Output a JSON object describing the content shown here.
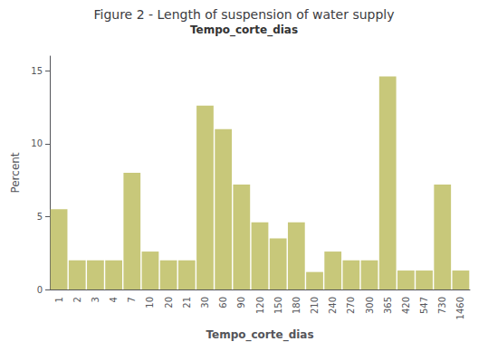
{
  "chart_data": {
    "type": "bar",
    "title": "Figure 2 - Length of suspension of water supply",
    "subtitle": "Tempo_corte_dias",
    "xlabel": "Tempo_corte_dias",
    "ylabel": "Percent",
    "categories": [
      "1",
      "2",
      "3",
      "4",
      "7",
      "10",
      "20",
      "21",
      "30",
      "60",
      "90",
      "120",
      "150",
      "180",
      "210",
      "240",
      "270",
      "300",
      "365",
      "420",
      "547",
      "730",
      "1460"
    ],
    "values": [
      5.5,
      2.0,
      2.0,
      2.0,
      8.0,
      2.6,
      2.0,
      2.0,
      12.6,
      11.0,
      7.2,
      4.6,
      3.5,
      4.6,
      1.2,
      2.6,
      2.0,
      2.0,
      14.6,
      1.3,
      1.3,
      7.2,
      1.3
    ],
    "color": "#c8c87a",
    "ylim": [
      0,
      16
    ],
    "yticks": [
      0,
      5,
      10,
      15
    ],
    "grid": false
  }
}
